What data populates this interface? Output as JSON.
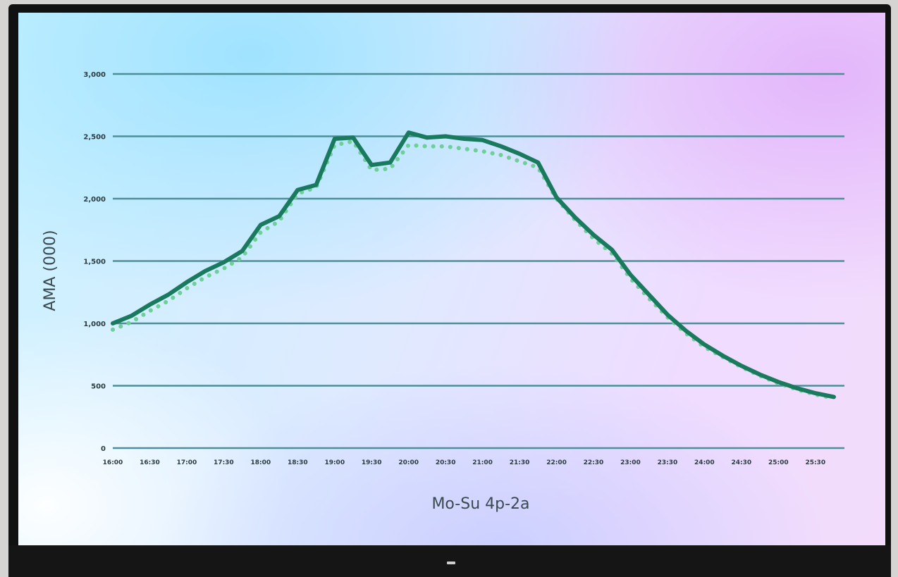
{
  "chart_data": {
    "type": "line",
    "title": "",
    "xlabel": "Mo-Su 4p-2a",
    "ylabel": "AMA (000)",
    "ylim": [
      0,
      3000
    ],
    "yticks": [
      0,
      500,
      1000,
      1500,
      2000,
      2500,
      3000
    ],
    "ytick_labels": [
      "0",
      "500",
      "1,000",
      "1,500",
      "2,000",
      "2,500",
      "3,000"
    ],
    "xtick_labels": [
      "16:00",
      "16:30",
      "17:00",
      "17:30",
      "18:00",
      "18:30",
      "19:00",
      "19:30",
      "20:00",
      "20:30",
      "21:00",
      "21:30",
      "22:00",
      "22:30",
      "23:00",
      "23:30",
      "24:00",
      "24:30",
      "25:00",
      "25:30"
    ],
    "x": [
      0,
      0.5,
      1,
      1.5,
      2,
      2.5,
      3,
      3.5,
      4,
      4.5,
      5,
      5.5,
      6,
      6.5,
      7,
      7.5,
      8,
      8.5,
      9,
      9.5,
      10,
      10.5,
      11,
      11.5,
      12,
      12.5,
      13,
      13.5,
      14,
      14.5,
      15,
      15.5,
      16,
      16.5,
      17,
      17.5,
      18,
      18.5,
      19,
      19.5
    ],
    "grid": true,
    "series": [
      {
        "style": "solid",
        "color": "#1a7a5e",
        "values": [
          1000,
          1060,
          1150,
          1230,
          1330,
          1420,
          1490,
          1580,
          1790,
          1860,
          2070,
          2110,
          2480,
          2490,
          2270,
          2290,
          2530,
          2490,
          2500,
          2480,
          2470,
          2420,
          2360,
          2290,
          2010,
          1850,
          1710,
          1590,
          1390,
          1230,
          1070,
          940,
          830,
          740,
          660,
          590,
          530,
          480,
          440,
          410
        ]
      },
      {
        "style": "dotted",
        "color": "#6fcf98",
        "values": [
          950,
          1010,
          1100,
          1180,
          1280,
          1370,
          1440,
          1530,
          1730,
          1820,
          2040,
          2090,
          2430,
          2460,
          2230,
          2240,
          2430,
          2420,
          2420,
          2400,
          2380,
          2350,
          2300,
          2250,
          2000,
          1830,
          1680,
          1560,
          1360,
          1200,
          1050,
          920,
          810,
          730,
          650,
          580,
          520,
          470,
          430,
          400
        ]
      }
    ]
  }
}
